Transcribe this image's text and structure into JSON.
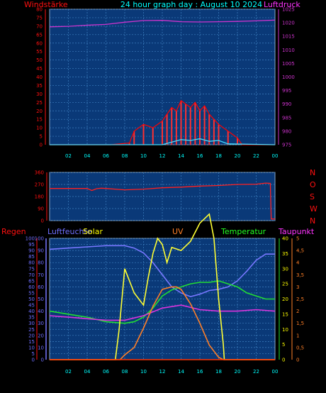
{
  "header": {
    "left_label": "Windstärke",
    "title": "24 hour graph day : August 10 2024",
    "right_label": "Luftdruck"
  },
  "colors": {
    "panel_bg": "#0a3978",
    "grid": "#3d7fbf",
    "axis_red": "#ff1010",
    "pressure": "#cc33cc",
    "wind": "#ff0000",
    "gust": "#ff3030",
    "windspeed_low": "#44ddff",
    "direction": "#ff2020",
    "humidity": "#7777ff",
    "solar": "#ffff33",
    "uv": "#ff7f27",
    "temperature": "#22dd33",
    "dewpoint": "#dd33dd",
    "rain": "#ff3300",
    "text_yellow": "#ffff00",
    "text_cyan": "#00ffff",
    "text_green": "#22ff22",
    "text_magenta": "#ff33ff",
    "text_blue": "#6f6fff"
  },
  "bottom_legend": {
    "rain": "Regen",
    "humidity": "Luftfeuchte",
    "solar": "Solar",
    "uv": "UV",
    "temperature": "Temperatur",
    "dewpoint": "Taupunkt"
  },
  "chart_data": [
    {
      "type": "line",
      "name": "wind-pressure",
      "xlim": [
        0,
        24
      ],
      "x_ticks": [
        "02",
        "04",
        "06",
        "08",
        "10",
        "12",
        "14",
        "16",
        "18",
        "20",
        "22",
        "00"
      ],
      "y_left": {
        "label": "Windstärke",
        "ylim": [
          0,
          80
        ],
        "ticks": [
          "0",
          "5",
          "10",
          "15",
          "20",
          "25",
          "30",
          "35",
          "40",
          "45",
          "50",
          "55",
          "60",
          "65",
          "70",
          "75",
          "80"
        ]
      },
      "y_right": {
        "label": "Luftdruck",
        "ylim": [
          975,
          1025
        ],
        "ticks": [
          "975",
          "980",
          "985",
          "990",
          "995",
          "1000",
          "1005",
          "1010",
          "1015",
          "1020",
          "1025"
        ]
      },
      "series": [
        {
          "key": "pressure",
          "axis": "right",
          "x": [
            0,
            2,
            4,
            6,
            8,
            10,
            12,
            14,
            16,
            18,
            20,
            22,
            24
          ],
          "values": [
            1018.5,
            1018.7,
            1019.1,
            1019.4,
            1020.2,
            1020.8,
            1020.9,
            1020.4,
            1020.3,
            1020.4,
            1020.5,
            1020.7,
            1021.0
          ]
        },
        {
          "key": "wind",
          "axis": "left",
          "x": [
            0,
            6.5,
            8.5,
            9,
            10,
            11,
            12,
            12.5,
            13,
            13.5,
            14,
            14.5,
            15,
            15.5,
            16,
            16.5,
            17,
            17.5,
            18,
            19,
            20,
            20.5,
            24
          ],
          "values": [
            0,
            0,
            1,
            8,
            12,
            10,
            14,
            18,
            22,
            20,
            26,
            24,
            22,
            25,
            20,
            23,
            18,
            15,
            12,
            8,
            4,
            0,
            0
          ]
        },
        {
          "key": "windspeed_low",
          "axis": "left",
          "x": [
            0,
            12,
            13,
            14,
            15,
            16,
            17,
            18,
            19,
            24
          ],
          "values": [
            0,
            0,
            1.5,
            3,
            2.5,
            3.5,
            2,
            2.5,
            0.5,
            0
          ]
        }
      ]
    },
    {
      "type": "line",
      "name": "wind-direction",
      "xlim": [
        0,
        24
      ],
      "y_left": {
        "ylim": [
          0,
          360
        ],
        "ticks": [
          "0",
          "90",
          "180",
          "270",
          "360"
        ]
      },
      "y_right": {
        "ticks": [
          "N",
          "W",
          "S",
          "O",
          "N"
        ]
      },
      "series": [
        {
          "key": "direction",
          "x": [
            0,
            4,
            4.5,
            5,
            5.5,
            6,
            8,
            10,
            12,
            14,
            16,
            18,
            20,
            22,
            23,
            23.5,
            23.6,
            24
          ],
          "values": [
            240,
            240,
            225,
            238,
            242,
            240,
            230,
            235,
            245,
            250,
            258,
            262,
            270,
            272,
            280,
            278,
            12,
            12
          ]
        }
      ]
    },
    {
      "type": "line",
      "name": "rain-humidity-solar-uv-temperature-dewpoint",
      "xlim": [
        0,
        24
      ],
      "y_left": {
        "label": "Regen",
        "ylim": [
          0,
          100
        ],
        "ticks": [
          "0",
          "5",
          "10",
          "15",
          "20",
          "25",
          "30",
          "35",
          "40",
          "45",
          "50",
          "55",
          "60",
          "65",
          "70",
          "75",
          "80",
          "85",
          "90",
          "95",
          "100"
        ]
      },
      "y_mid": {
        "label": "Luftfeuchte",
        "ylim": [
          0,
          100
        ],
        "ticks": [
          "0",
          "10",
          "20",
          "30",
          "40",
          "50",
          "60",
          "70",
          "80",
          "90",
          "100"
        ]
      },
      "y_temp": {
        "label": "Temperatur",
        "ylim": [
          0,
          40
        ],
        "ticks": [
          "0",
          "5",
          "10",
          "15",
          "20",
          "25",
          "30",
          "35",
          "40"
        ]
      },
      "y_uv": {
        "label": "Taupunkt",
        "ylim": [
          0,
          5
        ],
        "ticks": [
          "0",
          "0.5",
          "1",
          "1.5",
          "2",
          "2.5",
          "3",
          "3.5",
          "4",
          "4.5",
          "5"
        ]
      },
      "series": [
        {
          "key": "humidity",
          "x": [
            0,
            2,
            4,
            6,
            8,
            9,
            10,
            11,
            12,
            13,
            14,
            15,
            16,
            17,
            18,
            19,
            20,
            21,
            22,
            23,
            24
          ],
          "values": [
            91,
            92,
            93,
            94,
            94,
            92,
            88,
            80,
            70,
            60,
            55,
            52,
            54,
            57,
            58,
            60,
            65,
            73,
            82,
            87,
            87
          ]
        },
        {
          "key": "temperature",
          "x": [
            0,
            2,
            4,
            6,
            8,
            9,
            10,
            11,
            12,
            13,
            14,
            15,
            16,
            17,
            18,
            19,
            20,
            21,
            22,
            23,
            24
          ],
          "values": [
            16,
            15,
            14,
            12.5,
            12,
            12.5,
            14,
            17,
            21,
            23,
            24,
            25,
            25.5,
            25.5,
            26,
            25,
            24,
            22,
            21,
            20,
            20
          ]
        },
        {
          "key": "dewpoint",
          "x": [
            0,
            2,
            4,
            6,
            8,
            10,
            12,
            14,
            16,
            18,
            20,
            22,
            24
          ],
          "values": [
            14.5,
            14,
            13.5,
            13,
            13,
            14.5,
            17,
            18,
            16.5,
            16,
            16,
            16.5,
            16
          ]
        },
        {
          "key": "solar",
          "x": [
            0,
            6.5,
            6.6,
            7,
            7.4,
            8,
            9,
            10,
            10.5,
            11,
            11.5,
            12,
            12.5,
            13,
            14,
            15,
            16,
            17,
            17.5,
            18,
            18.5,
            18.6,
            24
          ],
          "values": [
            0,
            0,
            0,
            0,
            10,
            30,
            22,
            18,
            27,
            35,
            40,
            38,
            32,
            37,
            36,
            39,
            45,
            48,
            40,
            20,
            5,
            0,
            0
          ]
        },
        {
          "key": "uv",
          "x": [
            0,
            7.5,
            8,
            9,
            10,
            11,
            12,
            13,
            13.5,
            14,
            15,
            16,
            17,
            18,
            18.5,
            24
          ],
          "values": [
            0,
            0,
            0.2,
            0.5,
            1.3,
            2.2,
            2.9,
            3.0,
            3.0,
            2.9,
            2.3,
            1.5,
            0.6,
            0.1,
            0,
            0
          ]
        },
        {
          "key": "rain",
          "x": [
            0,
            24
          ],
          "values": [
            0,
            0
          ]
        }
      ]
    }
  ]
}
